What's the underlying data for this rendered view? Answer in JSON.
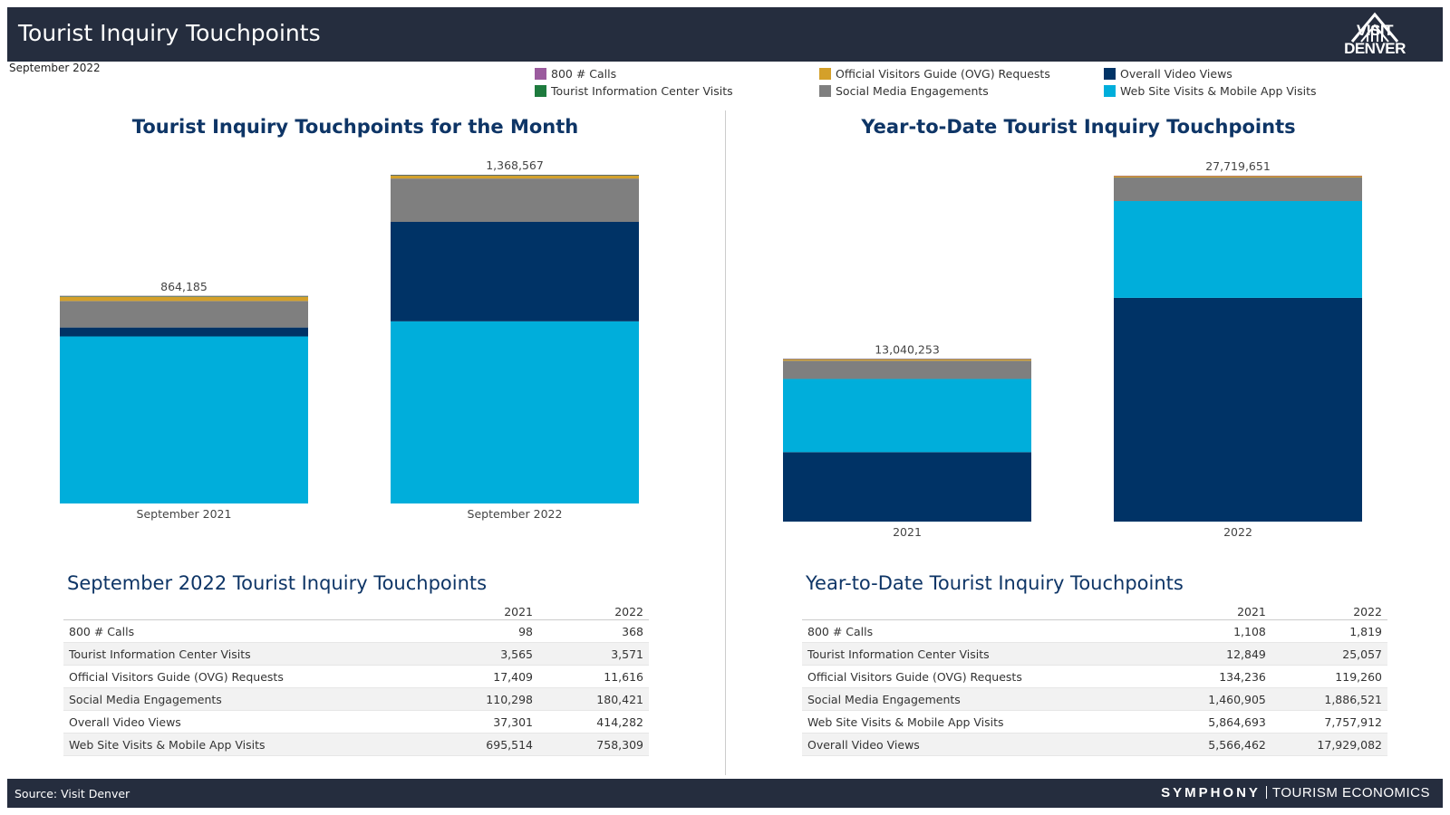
{
  "header": {
    "title": "Tourist Inquiry Touchpoints",
    "logo_text": "VISIT DENVER"
  },
  "date_label": "September 2022",
  "colors": {
    "calls": "#9b5b9e",
    "ovg": "#d4a02a",
    "video": "#003366",
    "tic": "#1e7b3e",
    "social": "#7f7f7f",
    "web": "#00aedb"
  },
  "legend": [
    {
      "key": "calls",
      "label": "800 # Calls"
    },
    {
      "key": "ovg",
      "label": "Official Visitors Guide (OVG) Requests"
    },
    {
      "key": "video",
      "label": "Overall Video Views"
    },
    {
      "key": "tic",
      "label": "Tourist Information Center Visits"
    },
    {
      "key": "social",
      "label": "Social Media Engagements"
    },
    {
      "key": "web",
      "label": "Web Site Visits & Mobile App Visits"
    }
  ],
  "chart_data": [
    {
      "type": "bar",
      "stacked": true,
      "title": "Tourist Inquiry Touchpoints for the Month",
      "categories": [
        "September 2021",
        "September 2022"
      ],
      "totals_labels": [
        "864,185",
        "1,368,567"
      ],
      "totals": [
        864185,
        1368567
      ],
      "series": [
        {
          "name": "Web Site Visits & Mobile App Visits",
          "key": "web",
          "values": [
            695514,
            758309
          ]
        },
        {
          "name": "Overall Video Views",
          "key": "video",
          "values": [
            37301,
            414282
          ]
        },
        {
          "name": "Social Media Engagements",
          "key": "social",
          "values": [
            110298,
            180421
          ]
        },
        {
          "name": "Official Visitors Guide (OVG) Requests",
          "key": "ovg",
          "values": [
            17409,
            11616
          ]
        },
        {
          "name": "Tourist Information Center Visits",
          "key": "tic",
          "values": [
            3565,
            3571
          ]
        },
        {
          "name": "800 # Calls",
          "key": "calls",
          "values": [
            98,
            368
          ]
        }
      ],
      "ylim": [
        0,
        1368567
      ]
    },
    {
      "type": "bar",
      "stacked": true,
      "title": "Year-to-Date Tourist Inquiry Touchpoints",
      "categories": [
        "2021",
        "2022"
      ],
      "totals_labels": [
        "13,040,253",
        "27,719,651"
      ],
      "totals": [
        13040253,
        27719651
      ],
      "series": [
        {
          "name": "Overall Video Views",
          "key": "video",
          "values": [
            5566462,
            17929082
          ]
        },
        {
          "name": "Web Site Visits & Mobile App Visits",
          "key": "web",
          "values": [
            5864693,
            7757912
          ]
        },
        {
          "name": "Social Media Engagements",
          "key": "social",
          "values": [
            1460905,
            1886521
          ]
        },
        {
          "name": "Official Visitors Guide (OVG) Requests",
          "key": "ovg",
          "values": [
            134236,
            119260
          ]
        },
        {
          "name": "Tourist Information Center Visits",
          "key": "tic",
          "values": [
            12849,
            25057
          ]
        },
        {
          "name": "800 # Calls",
          "key": "calls",
          "values": [
            1108,
            1819
          ]
        }
      ],
      "ylim": [
        0,
        27719651
      ]
    }
  ],
  "tables": [
    {
      "title": "September 2022 Tourist Inquiry Touchpoints",
      "columns": [
        "2021",
        "2022"
      ],
      "rows": [
        {
          "label": "800 # Calls",
          "v2021": "98",
          "v2022": "368"
        },
        {
          "label": "Tourist Information Center Visits",
          "v2021": "3,565",
          "v2022": "3,571"
        },
        {
          "label": "Official Visitors Guide (OVG) Requests",
          "v2021": "17,409",
          "v2022": "11,616"
        },
        {
          "label": "Social Media Engagements",
          "v2021": "110,298",
          "v2022": "180,421"
        },
        {
          "label": "Overall Video Views",
          "v2021": "37,301",
          "v2022": "414,282"
        },
        {
          "label": "Web Site Visits & Mobile App Visits",
          "v2021": "695,514",
          "v2022": "758,309"
        }
      ]
    },
    {
      "title": "Year-to-Date Tourist Inquiry Touchpoints",
      "columns": [
        "2021",
        "2022"
      ],
      "rows": [
        {
          "label": "800 # Calls",
          "v2021": "1,108",
          "v2022": "1,819"
        },
        {
          "label": "Tourist Information Center Visits",
          "v2021": "12,849",
          "v2022": "25,057"
        },
        {
          "label": "Official Visitors Guide (OVG) Requests",
          "v2021": "134,236",
          "v2022": "119,260"
        },
        {
          "label": "Social Media Engagements",
          "v2021": "1,460,905",
          "v2022": "1,886,521"
        },
        {
          "label": "Web Site Visits & Mobile App Visits",
          "v2021": "5,864,693",
          "v2022": "7,757,912"
        },
        {
          "label": "Overall Video Views",
          "v2021": "5,566,462",
          "v2022": "17,929,082"
        }
      ]
    }
  ],
  "footer": {
    "source": "Source: Visit Denver",
    "brand_symphony": "SYMPHONY",
    "brand_te": "TOURISM ECONOMICS"
  }
}
